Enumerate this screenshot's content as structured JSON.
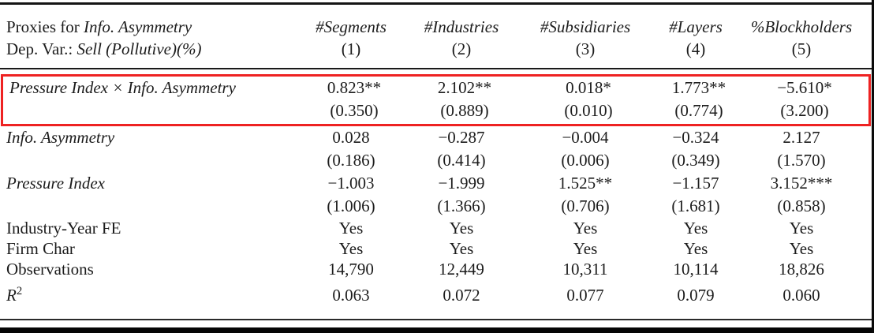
{
  "colors": {
    "highlight_box": "#ee2222",
    "text": "#1c1c1c",
    "rule": "#141414"
  },
  "table": {
    "header": {
      "row1_prefix": "Proxies for ",
      "row1_italic": "Info. Asymmetry",
      "row2_prefix": "Dep. Var.: ",
      "row2_italic": "Sell (Pollutive)(%)",
      "columns": [
        {
          "name": "#Segments",
          "number": "(1)"
        },
        {
          "name": "#Industries",
          "number": "(2)"
        },
        {
          "name": "#Subsidiaries",
          "number": "(3)"
        },
        {
          "name": "#Layers",
          "number": "(4)"
        },
        {
          "name": "%Blockholders",
          "number": "(5)"
        }
      ]
    },
    "rows": [
      {
        "label": "Pressure Index × Info. Asymmetry",
        "highlighted": true,
        "values": [
          "0.823**",
          "2.102**",
          "0.018*",
          "1.773**",
          "−5.610*"
        ],
        "se": [
          "(0.350)",
          "(0.889)",
          "(0.010)",
          "(0.774)",
          "(3.200)"
        ]
      },
      {
        "label": "Info. Asymmetry",
        "values": [
          "0.028",
          "−0.287",
          "−0.004",
          "−0.324",
          "2.127"
        ],
        "se": [
          "(0.186)",
          "(0.414)",
          "(0.006)",
          "(0.349)",
          "(1.570)"
        ]
      },
      {
        "label": "Pressure Index",
        "values": [
          "−1.003",
          "−1.999",
          "1.525**",
          "−1.157",
          "3.152***"
        ],
        "se": [
          "(1.006)",
          "(1.366)",
          "(0.706)",
          "(1.681)",
          "(0.858)"
        ]
      },
      {
        "label": "Industry-Year FE",
        "values": [
          "Yes",
          "Yes",
          "Yes",
          "Yes",
          "Yes"
        ]
      },
      {
        "label": "Firm Char",
        "values": [
          "Yes",
          "Yes",
          "Yes",
          "Yes",
          "Yes"
        ]
      },
      {
        "label": "Observations",
        "values": [
          "14,790",
          "12,449",
          "10,311",
          "10,114",
          "18,826"
        ]
      },
      {
        "label": "R",
        "label_sup": "2",
        "values": [
          "0.063",
          "0.072",
          "0.077",
          "0.079",
          "0.060"
        ]
      }
    ]
  }
}
